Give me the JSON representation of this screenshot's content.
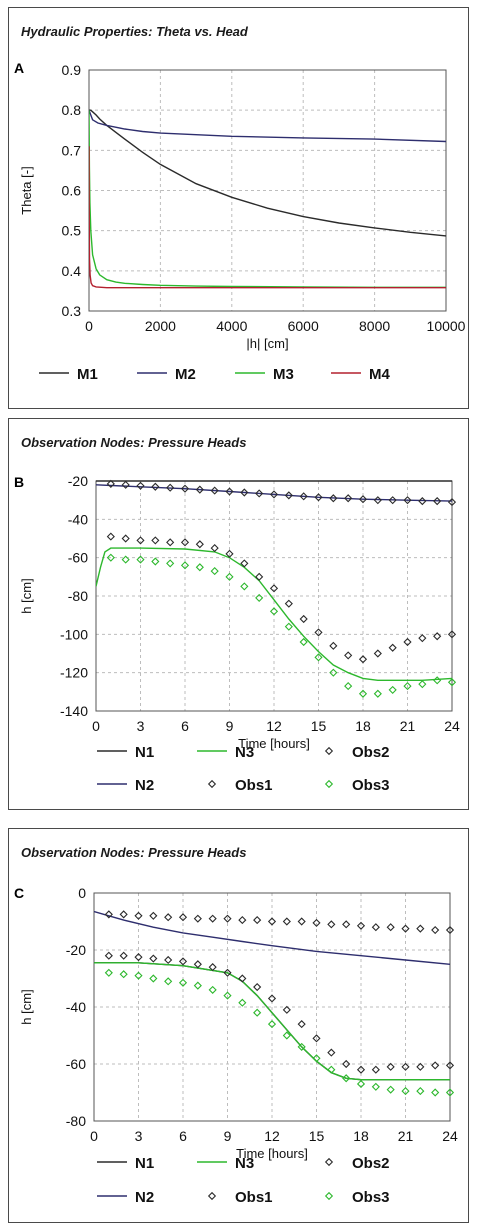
{
  "colors": {
    "M1": "#2b2b2b",
    "M2": "#2e2e6e",
    "M3": "#2db82d",
    "M4": "#b3202e",
    "N1": "#2b2b2b",
    "N2": "#2e2e6e",
    "N3": "#2db82d",
    "Obs1": "#2b2b2b",
    "Obs2": "#2b2b2b",
    "Obs3": "#2db82d",
    "grid": "#bdbdbd"
  },
  "chart_data": [
    {
      "letter": "A",
      "title": "Hydraulic Properties:  Theta vs. Head",
      "type": "line",
      "xlabel": "|h| [cm]",
      "ylabel": "Theta [-]",
      "xlim": [
        0,
        10000
      ],
      "ylim": [
        0.3,
        0.9
      ],
      "xticks": [
        "0",
        "2000",
        "4000",
        "6000",
        "8000",
        "10000"
      ],
      "yticks": [
        "0.3",
        "0.4",
        "0.5",
        "0.6",
        "0.7",
        "0.8",
        "0.9"
      ],
      "grid": true,
      "legend_position": "bottom",
      "series": [
        {
          "name": "M1",
          "color_key": "M1",
          "kind": "line",
          "x": [
            0,
            50,
            100,
            200,
            300,
            500,
            750,
            1000,
            1500,
            2000,
            3000,
            4000,
            5000,
            6000,
            7000,
            8000,
            9000,
            10000
          ],
          "y": [
            0.8,
            0.8,
            0.796,
            0.788,
            0.778,
            0.762,
            0.745,
            0.728,
            0.695,
            0.665,
            0.617,
            0.583,
            0.556,
            0.535,
            0.519,
            0.507,
            0.496,
            0.487
          ]
        },
        {
          "name": "M2",
          "color_key": "M2",
          "kind": "line",
          "x": [
            0,
            100,
            250,
            500,
            1000,
            1500,
            2000,
            3000,
            4000,
            6000,
            8000,
            10000
          ],
          "y": [
            0.8,
            0.776,
            0.768,
            0.762,
            0.753,
            0.747,
            0.743,
            0.739,
            0.735,
            0.731,
            0.728,
            0.722
          ]
        },
        {
          "name": "M3",
          "color_key": "M3",
          "kind": "line",
          "x": [
            0,
            10,
            25,
            50,
            100,
            200,
            300,
            500,
            750,
            1000,
            1500,
            2000,
            3000,
            4000,
            6000,
            8000,
            10000
          ],
          "y": [
            0.8,
            0.66,
            0.57,
            0.5,
            0.44,
            0.405,
            0.39,
            0.378,
            0.372,
            0.369,
            0.366,
            0.364,
            0.362,
            0.361,
            0.36,
            0.359,
            0.359
          ]
        },
        {
          "name": "M4",
          "color_key": "M4",
          "kind": "line",
          "x": [
            0,
            4,
            8,
            15,
            30,
            60,
            100,
            200,
            500,
            1000,
            10000
          ],
          "y": [
            0.71,
            0.6,
            0.5,
            0.43,
            0.39,
            0.37,
            0.363,
            0.36,
            0.358,
            0.358,
            0.358
          ]
        }
      ]
    },
    {
      "letter": "B",
      "title": "Observation Nodes: Pressure Heads",
      "type": "line",
      "xlabel": "Time [hours]",
      "ylabel": "h [cm]",
      "xlim": [
        0,
        24
      ],
      "ylim": [
        -140,
        -20
      ],
      "xticks": [
        "0",
        "3",
        "6",
        "9",
        "12",
        "15",
        "18",
        "21",
        "24"
      ],
      "yticks": [
        "-20",
        "-40",
        "-60",
        "-80",
        "-100",
        "-120",
        "-140"
      ],
      "grid": true,
      "legend_position": "bottom",
      "series": [
        {
          "name": "N1",
          "color_key": "N1",
          "kind": "line",
          "x": [
            0,
            24
          ],
          "y": [
            -20,
            -20
          ]
        },
        {
          "name": "N2",
          "color_key": "N2",
          "kind": "line",
          "x": [
            0,
            3,
            6,
            9,
            12,
            15,
            18,
            21,
            24
          ],
          "y": [
            -22,
            -23,
            -24,
            -25.5,
            -27,
            -28.5,
            -29.5,
            -30,
            -30.5
          ]
        },
        {
          "name": "N3",
          "color_key": "N3",
          "kind": "line",
          "x": [
            0,
            0.3,
            0.6,
            1,
            3,
            6,
            8,
            9,
            10,
            11,
            12,
            13,
            14,
            15,
            16,
            17,
            18,
            19,
            20,
            21,
            22,
            24
          ],
          "y": [
            -75,
            -65,
            -57,
            -55,
            -55,
            -55.5,
            -57,
            -60,
            -65,
            -72,
            -82,
            -92,
            -101,
            -109,
            -116,
            -120,
            -123,
            -124,
            -124,
            -124,
            -124,
            -123
          ]
        },
        {
          "name": "Obs1",
          "color_key": "Obs1",
          "kind": "marker",
          "x": [
            1,
            2,
            3,
            4,
            5,
            6,
            7,
            8,
            9,
            10,
            11,
            12,
            13,
            14,
            15,
            16,
            17,
            18,
            19,
            20,
            21,
            22,
            23,
            24
          ],
          "y": [
            -21.5,
            -22,
            -22.5,
            -23,
            -23.5,
            -24,
            -24.5,
            -25,
            -25.5,
            -26,
            -26.5,
            -27,
            -27.5,
            -28,
            -28.5,
            -29,
            -29,
            -29.5,
            -30,
            -30,
            -30,
            -30.5,
            -30.5,
            -31
          ]
        },
        {
          "name": "Obs2",
          "color_key": "Obs2",
          "kind": "marker",
          "x": [
            1,
            2,
            3,
            4,
            5,
            6,
            7,
            8,
            9,
            10,
            11,
            12,
            13,
            14,
            15,
            16,
            17,
            18,
            19,
            20,
            21,
            22,
            23,
            24
          ],
          "y": [
            -49,
            -50,
            -51,
            -51,
            -52,
            -52,
            -53,
            -55,
            -58,
            -63,
            -70,
            -76,
            -84,
            -92,
            -99,
            -106,
            -111,
            -113,
            -110,
            -107,
            -104,
            -102,
            -101,
            -100
          ]
        },
        {
          "name": "Obs3",
          "color_key": "Obs3",
          "kind": "marker",
          "x": [
            1,
            2,
            3,
            4,
            5,
            6,
            7,
            8,
            9,
            10,
            11,
            12,
            13,
            14,
            15,
            16,
            17,
            18,
            19,
            20,
            21,
            22,
            23,
            24
          ],
          "y": [
            -60,
            -61,
            -61,
            -62,
            -63,
            -64,
            -65,
            -67,
            -70,
            -75,
            -81,
            -88,
            -96,
            -104,
            -112,
            -120,
            -127,
            -131,
            -131,
            -129,
            -127,
            -126,
            -124,
            -125
          ]
        }
      ]
    },
    {
      "letter": "C",
      "title": "Observation Nodes: Pressure Heads",
      "type": "line",
      "xlabel": "Time [hours]",
      "ylabel": "h [cm]",
      "xlim": [
        0,
        24
      ],
      "ylim": [
        -80,
        0
      ],
      "xticks": [
        "0",
        "3",
        "6",
        "9",
        "12",
        "15",
        "18",
        "21",
        "24"
      ],
      "yticks": [
        "0",
        "-20",
        "-40",
        "-60",
        "-80"
      ],
      "grid": true,
      "legend_position": "bottom",
      "series": [
        {
          "name": "N1",
          "color_key": "N1",
          "kind": "line",
          "x": [
            0,
            3,
            6,
            9,
            10,
            11,
            12,
            13,
            14,
            15,
            16,
            17,
            18,
            24
          ],
          "y": [
            -24.5,
            -24.5,
            -25.5,
            -28,
            -31,
            -36,
            -42,
            -48,
            -54,
            -59,
            -63,
            -65,
            -65.5,
            -65.5
          ]
        },
        {
          "name": "N2",
          "color_key": "N2",
          "kind": "line",
          "x": [
            0,
            1,
            2,
            4,
            6,
            8,
            10,
            12,
            15,
            18,
            21,
            24
          ],
          "y": [
            -6.5,
            -8,
            -9.5,
            -12,
            -14,
            -15.5,
            -17,
            -18.5,
            -20.5,
            -22,
            -23.5,
            -25
          ]
        },
        {
          "name": "N3",
          "color_key": "N3",
          "kind": "line",
          "x": [
            0,
            3,
            6,
            9,
            10,
            11,
            12,
            13,
            14,
            15,
            16,
            17,
            18,
            24
          ],
          "y": [
            -24.5,
            -24.5,
            -25.5,
            -28,
            -31,
            -36,
            -42,
            -48,
            -54,
            -59,
            -63,
            -65,
            -65.5,
            -65.5
          ]
        },
        {
          "name": "Obs1",
          "color_key": "Obs1",
          "kind": "marker",
          "x": [
            1,
            2,
            3,
            4,
            5,
            6,
            7,
            8,
            9,
            10,
            11,
            12,
            13,
            14,
            15,
            16,
            17,
            18,
            19,
            20,
            21,
            22,
            23,
            24
          ],
          "y": [
            -7.5,
            -7.5,
            -8,
            -8,
            -8.5,
            -8.5,
            -9,
            -9,
            -9,
            -9.5,
            -9.5,
            -10,
            -10,
            -10,
            -10.5,
            -11,
            -11,
            -11.5,
            -12,
            -12,
            -12.5,
            -12.5,
            -13,
            -13
          ]
        },
        {
          "name": "Obs2",
          "color_key": "Obs2",
          "kind": "marker",
          "x": [
            1,
            2,
            3,
            4,
            5,
            6,
            7,
            8,
            9,
            10,
            11,
            12,
            13,
            14,
            15,
            16,
            17,
            18,
            19,
            20,
            21,
            22,
            23,
            24
          ],
          "y": [
            -22,
            -22,
            -22.5,
            -23,
            -23.5,
            -24,
            -25,
            -26,
            -28,
            -30,
            -33,
            -37,
            -41,
            -46,
            -51,
            -56,
            -60,
            -62,
            -62,
            -61,
            -61,
            -61,
            -60.5,
            -60.5
          ]
        },
        {
          "name": "Obs3",
          "color_key": "Obs3",
          "kind": "marker",
          "x": [
            1,
            2,
            3,
            4,
            5,
            6,
            7,
            8,
            9,
            10,
            11,
            12,
            13,
            14,
            15,
            16,
            17,
            18,
            19,
            20,
            21,
            22,
            23,
            24
          ],
          "y": [
            -28,
            -28.5,
            -29,
            -30,
            -31,
            -31.5,
            -32.5,
            -34,
            -36,
            -38.5,
            -42,
            -46,
            -50,
            -54,
            -58,
            -62,
            -65,
            -67,
            -68,
            -69,
            -69.5,
            -69.5,
            -70,
            -70
          ]
        }
      ]
    }
  ]
}
